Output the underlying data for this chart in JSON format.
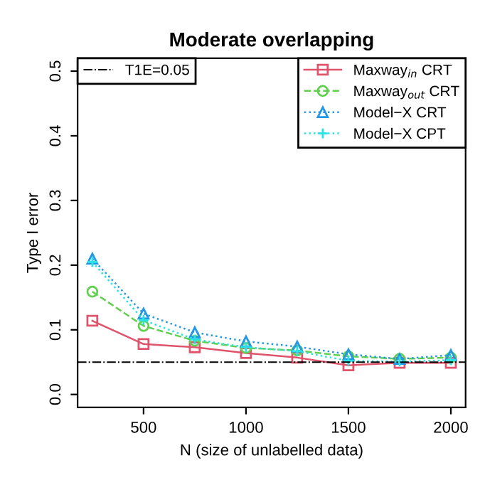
{
  "chart_data": {
    "type": "line",
    "title": "Moderate overlapping",
    "xlabel": "N (size of unlabelled data)",
    "ylabel": "Type I error",
    "x": [
      250,
      500,
      750,
      1000,
      1250,
      1500,
      1750,
      2000
    ],
    "series": [
      {
        "name": "Maxway$_{in}$ CRT",
        "color": "#df536b",
        "marker": "square",
        "line_style": "solid",
        "values": [
          0.114,
          0.078,
          0.073,
          0.064,
          0.057,
          0.045,
          0.049,
          0.049
        ]
      },
      {
        "name": "Maxway$_{out}$ CRT",
        "color": "#61d04f",
        "marker": "circle",
        "line_style": "dashed",
        "values": [
          0.159,
          0.106,
          0.083,
          0.072,
          0.068,
          0.059,
          0.055,
          0.057
        ]
      },
      {
        "name": "Model−X CRT",
        "color": "#2297e6",
        "marker": "triangle",
        "line_style": "dotted",
        "values": [
          0.21,
          0.125,
          0.096,
          0.082,
          0.074,
          0.062,
          0.055,
          0.061
        ]
      },
      {
        "name": "Model−X CPT",
        "color": "#28e2e5",
        "marker": "cross",
        "line_style": "dotted",
        "values": [
          0.205,
          0.115,
          0.085,
          0.073,
          0.067,
          0.052,
          0.051,
          0.053
        ]
      }
    ],
    "ref_lines": [
      {
        "axis": "y",
        "value": 0.05,
        "label": "T1E=0.05",
        "color": "#000000",
        "line_style": "dashdot"
      }
    ],
    "xlim": [
      178,
      2072
    ],
    "ylim": [
      -0.02,
      0.52
    ],
    "xticks": [
      500,
      1000,
      1500,
      2000
    ],
    "yticks": [
      {
        "value": 0,
        "label": "0.0"
      },
      0.1,
      0.2,
      0.3,
      0.4,
      0.5
    ],
    "grid": false,
    "legend": "top right"
  }
}
